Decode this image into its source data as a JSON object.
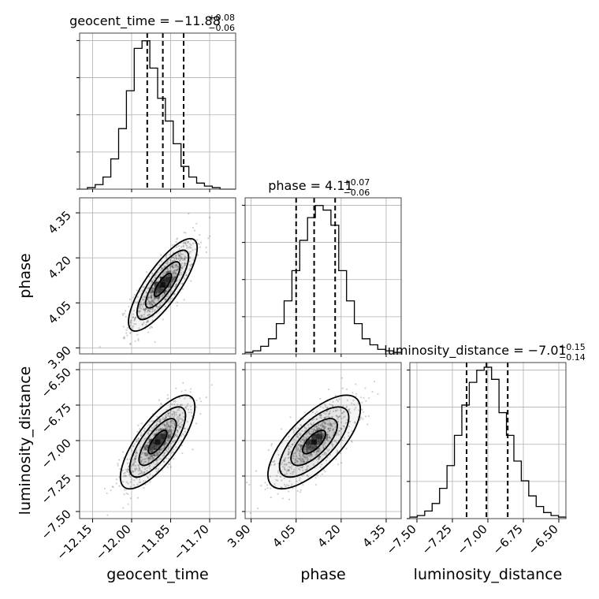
{
  "chart_data": {
    "type": "scatter",
    "subtype": "corner-plot",
    "parameters": [
      {
        "name": "geocent_time",
        "range": [
          -12.2,
          -11.6
        ],
        "ticks": [
          -12.15,
          -12.0,
          -11.85,
          -11.7
        ],
        "tick_labels": [
          "−12.15",
          "−12.00",
          "−11.85",
          "−11.70"
        ],
        "median": -11.88,
        "plus": 0.08,
        "minus": 0.06,
        "title_prefix": "geocent_time = −11.88",
        "title_plus": "+0.08",
        "title_minus": "−0.06",
        "histogram": [
          0,
          0.01,
          0.03,
          0.08,
          0.2,
          0.4,
          0.65,
          0.93,
          0.98,
          0.8,
          0.6,
          0.45,
          0.3,
          0.15,
          0.08,
          0.04,
          0.02,
          0.01,
          0,
          0
        ]
      },
      {
        "name": "phase",
        "range": [
          3.88,
          4.4
        ],
        "ticks": [
          3.9,
          4.05,
          4.2,
          4.35
        ],
        "tick_labels": [
          "3.90",
          "4.05",
          "4.20",
          "4.35"
        ],
        "median": 4.11,
        "plus": 0.07,
        "minus": 0.06,
        "title_prefix": "phase = 4.11",
        "title_plus": "+0.07",
        "title_minus": "−0.06",
        "histogram": [
          0.01,
          0.02,
          0.05,
          0.1,
          0.2,
          0.35,
          0.55,
          0.75,
          0.9,
          0.98,
          0.95,
          0.85,
          0.55,
          0.35,
          0.2,
          0.1,
          0.06,
          0.03,
          0.02,
          0.01
        ]
      },
      {
        "name": "luminosity_distance",
        "range": [
          -7.55,
          -6.45
        ],
        "ticks": [
          -7.5,
          -7.25,
          -7.0,
          -6.75,
          -6.5
        ],
        "tick_labels": [
          "−7.50",
          "−7.25",
          "−7.00",
          "−6.75",
          "−6.50"
        ],
        "median": -7.01,
        "plus": 0.15,
        "minus": 0.14,
        "title_prefix": "luminosity_distance = −7.01",
        "title_plus": "+0.15",
        "title_minus": "−0.14",
        "histogram": [
          0.01,
          0.02,
          0.05,
          0.1,
          0.2,
          0.35,
          0.55,
          0.75,
          0.9,
          0.98,
          1.0,
          0.92,
          0.7,
          0.55,
          0.38,
          0.25,
          0.15,
          0.08,
          0.04,
          0.02,
          0.01
        ]
      }
    ],
    "pairs": [
      {
        "x": 0,
        "y": 1,
        "center": [
          -11.88,
          4.11
        ],
        "sigma": [
          0.06,
          0.07
        ],
        "rho": 0.8
      },
      {
        "x": 0,
        "y": 2,
        "center": [
          -11.9,
          -7.01
        ],
        "sigma": [
          0.065,
          0.15
        ],
        "rho": 0.75
      },
      {
        "x": 1,
        "y": 2,
        "center": [
          4.11,
          -7.01
        ],
        "sigma": [
          0.07,
          0.15
        ],
        "rho": 0.7
      }
    ],
    "grid": true,
    "colors": {
      "line": "#000000",
      "points": "#555555",
      "grid": "#b0b0b0"
    }
  }
}
